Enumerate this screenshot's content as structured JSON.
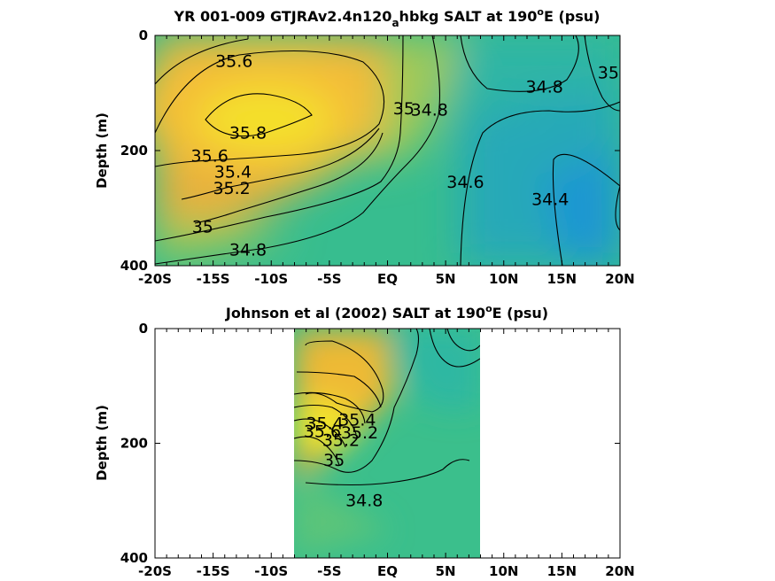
{
  "chart_data": [
    {
      "type": "heatmap",
      "subtype": "filled-contour",
      "title_main": "YR 001-009 GTJRAv2.4n120",
      "title_sub": "a",
      "title_rest": "hbkg SALT at 190",
      "title_deg": "o",
      "title_tail": "E (psu)",
      "ylabel": "Depth (m)",
      "xlim": [
        -20,
        20
      ],
      "ylim": [
        0,
        400
      ],
      "y_reversed": true,
      "x_ticks": [
        "-20S",
        "-15S",
        "-10S",
        "-5S",
        "EQ",
        "5N",
        "10N",
        "15N",
        "20N"
      ],
      "y_ticks": [
        "0",
        "200",
        "400"
      ],
      "colormap": "parula",
      "contour_labels": [
        {
          "text": "35.6",
          "lat": -13.2,
          "depth": 45
        },
        {
          "text": "35.8",
          "lat": -12.0,
          "depth": 170
        },
        {
          "text": "35.6",
          "lat": -15.3,
          "depth": 210
        },
        {
          "text": "35.4",
          "lat": -13.3,
          "depth": 238
        },
        {
          "text": "35.2",
          "lat": -13.4,
          "depth": 266
        },
        {
          "text": "35",
          "lat": -15.9,
          "depth": 333
        },
        {
          "text": "34.8",
          "lat": -12.0,
          "depth": 373
        },
        {
          "text": "35",
          "lat": 1.4,
          "depth": 128
        },
        {
          "text": "34.8",
          "lat": 3.6,
          "depth": 130
        },
        {
          "text": "34.6",
          "lat": 6.7,
          "depth": 255
        },
        {
          "text": "34.4",
          "lat": 14.0,
          "depth": 285
        },
        {
          "text": "34.8",
          "lat": 13.5,
          "depth": 90
        },
        {
          "text": "35",
          "lat": 19.0,
          "depth": 65
        }
      ]
    },
    {
      "type": "heatmap",
      "subtype": "filled-contour",
      "title_main": "Johnson et al (2002) SALT at 190",
      "title_deg": "o",
      "title_tail": "E (psu)",
      "ylabel": "Depth (m)",
      "xlim": [
        -20,
        20
      ],
      "ylim": [
        0,
        400
      ],
      "y_reversed": true,
      "data_lat_range": [
        -8,
        8
      ],
      "x_ticks": [
        "-20S",
        "-15S",
        "-10S",
        "-5S",
        "EQ",
        "5N",
        "10N",
        "15N",
        "20N"
      ],
      "y_ticks": [
        "0",
        "200",
        "400"
      ],
      "colormap": "parula",
      "contour_labels": [
        {
          "text": "35.4",
          "lat": -5.4,
          "depth": 166
        },
        {
          "text": "35.6",
          "lat": -5.6,
          "depth": 180
        },
        {
          "text": "35.2",
          "lat": -4.0,
          "depth": 195
        },
        {
          "text": "35",
          "lat": -4.6,
          "depth": 230
        },
        {
          "text": "35.4",
          "lat": -2.6,
          "depth": 160
        },
        {
          "text": "35.2",
          "lat": -2.4,
          "depth": 182
        },
        {
          "text": "34.8",
          "lat": -2.0,
          "depth": 300
        }
      ]
    }
  ]
}
